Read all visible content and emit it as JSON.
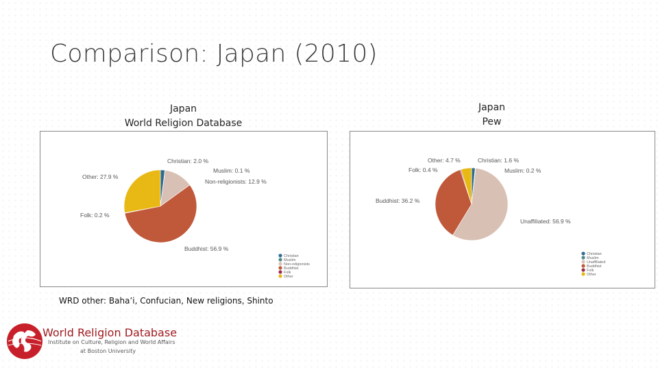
{
  "slide": {
    "title": "Comparison: Japan (2010)",
    "left_heading": [
      "Japan",
      "World Religion Database"
    ],
    "right_heading": [
      "Japan",
      "Pew"
    ],
    "note": "WRD other: Baha’i, Confucian, New religions, Shinto"
  },
  "logo": {
    "name": "World Religion Database",
    "subtitle": "Institute on Culture, Religion and World Affairs",
    "subtitle2": "at Boston University"
  },
  "chart_data": [
    {
      "type": "pie",
      "title": "",
      "slices": [
        {
          "label": "Christian",
          "value": 2.0,
          "display": "Christian: 2.0 %",
          "color": "#2f6b8f"
        },
        {
          "label": "Muslim",
          "value": 0.1,
          "display": "Muslim: 0.1 %",
          "color": "#4f8a8b"
        },
        {
          "label": "Non-religionists",
          "value": 12.9,
          "display": "Non-religionists: 12.9 %",
          "color": "#d9c0b4"
        },
        {
          "label": "Buddhist",
          "value": 56.9,
          "display": "Buddhist: 56.9 %",
          "color": "#c0583a"
        },
        {
          "label": "Folk",
          "value": 0.2,
          "display": "Folk: 0.2 %",
          "color": "#9b2d4a"
        },
        {
          "label": "Other",
          "value": 27.9,
          "display": "Other: 27.9 %",
          "color": "#e8b914"
        }
      ],
      "legend": [
        "Christian",
        "Muslim",
        "Non-religionists",
        "Buddhist",
        "Folk",
        "Other"
      ],
      "legend_position": "bottom-right"
    },
    {
      "type": "pie",
      "title": "",
      "slices": [
        {
          "label": "Christian",
          "value": 1.6,
          "display": "Christian: 1.6 %",
          "color": "#2f6b8f"
        },
        {
          "label": "Muslim",
          "value": 0.2,
          "display": "Muslim: 0.2 %",
          "color": "#4f8a8b"
        },
        {
          "label": "Unaffiliated",
          "value": 56.9,
          "display": "Unaffiliated: 56.9 %",
          "color": "#d9c0b4"
        },
        {
          "label": "Buddhist",
          "value": 36.2,
          "display": "Buddhist: 36.2 %",
          "color": "#c0583a"
        },
        {
          "label": "Folk",
          "value": 0.4,
          "display": "Folk: 0.4 %",
          "color": "#9b2d4a"
        },
        {
          "label": "Other",
          "value": 4.7,
          "display": "Other: 4.7 %",
          "color": "#e8b914"
        }
      ],
      "legend": [
        "Christian",
        "Muslim",
        "Unaffiliated",
        "Buddhist",
        "Folk",
        "Other"
      ],
      "legend_position": "bottom-right"
    }
  ]
}
